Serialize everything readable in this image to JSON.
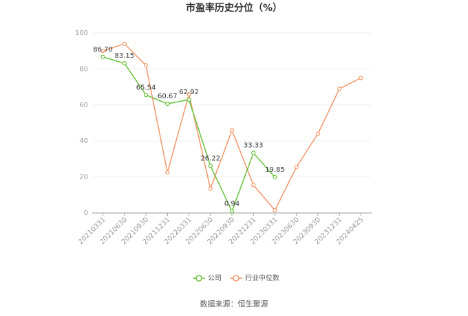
{
  "chart_data": {
    "type": "line",
    "title": "市盈率历史分位（%）",
    "categories": [
      "20210331",
      "20210630",
      "20210930",
      "20211231",
      "20220331",
      "20220630",
      "20220930",
      "20221231",
      "20230331",
      "20230630",
      "20230930",
      "20231231",
      "20240425"
    ],
    "series": [
      {
        "name": "公司",
        "color": "#67c23a",
        "values": [
          86.7,
          83.15,
          65.54,
          60.67,
          62.92,
          26.22,
          0.94,
          33.33,
          19.85,
          null,
          null,
          null,
          null
        ],
        "value_labels": [
          "86.70",
          "83.15",
          "65.54",
          "60.67",
          "62.92",
          "26.22",
          "0.94",
          "33.33",
          "19.85",
          null,
          null,
          null,
          null
        ]
      },
      {
        "name": "行业中位数",
        "color": "#f4956a",
        "values": [
          90,
          94,
          82,
          22.5,
          66,
          13.5,
          46,
          15.5,
          1.5,
          25.5,
          44,
          69,
          75
        ]
      }
    ],
    "ylim": [
      0,
      100
    ],
    "yticks": [
      0,
      20,
      40,
      60,
      80,
      100
    ],
    "grid": true,
    "source": "数据来源：恒生聚源"
  }
}
